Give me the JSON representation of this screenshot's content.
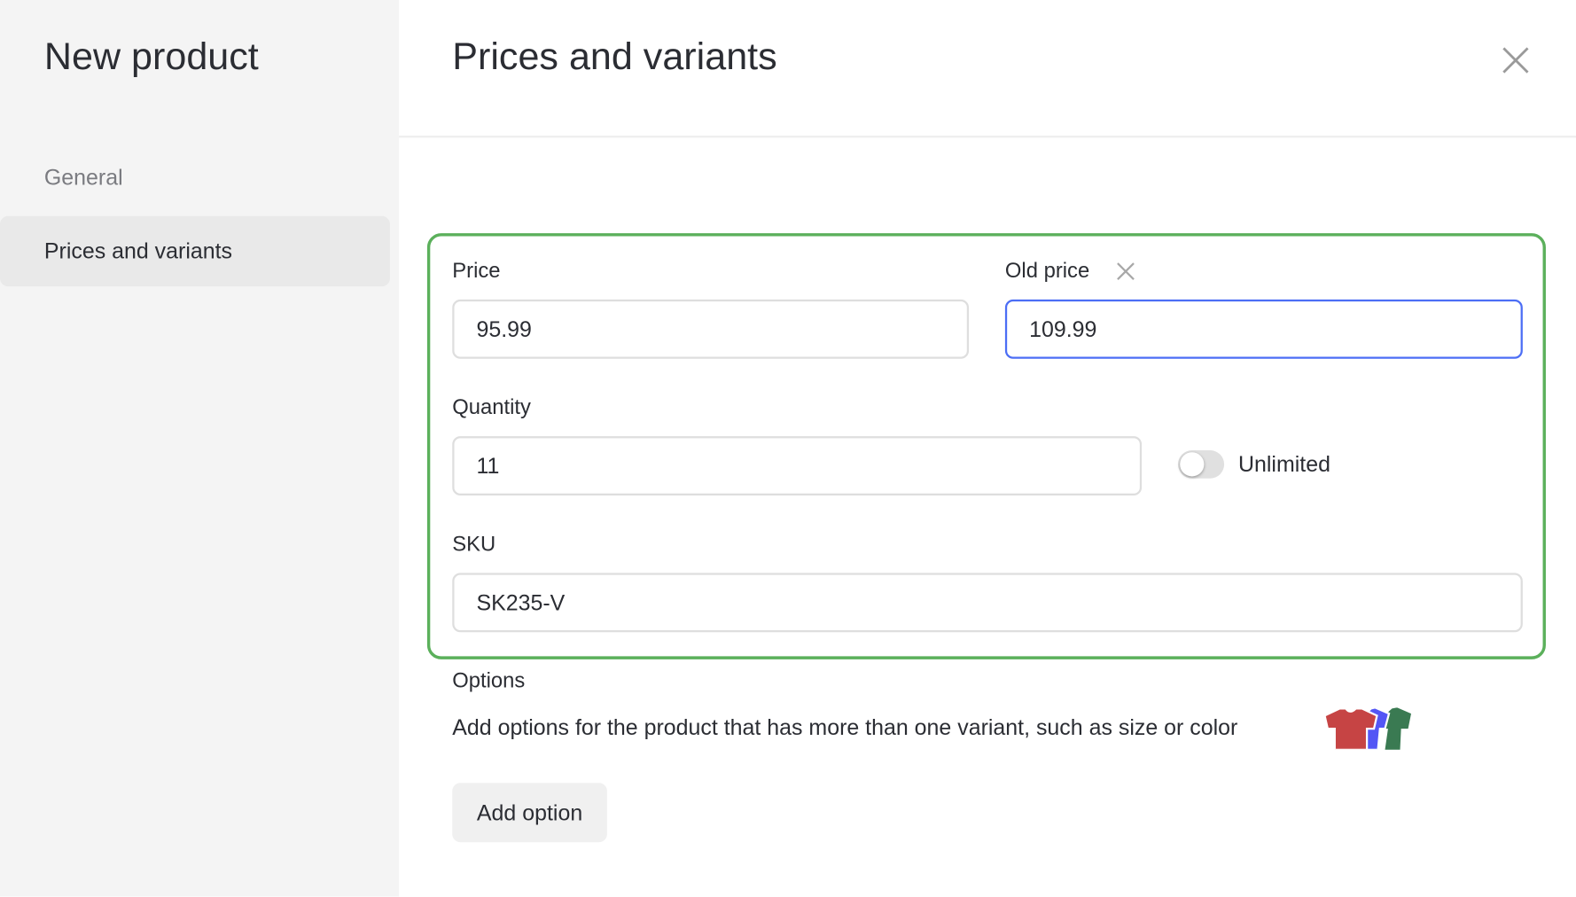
{
  "sidebar": {
    "title": "New product",
    "items": [
      {
        "label": "General",
        "active": false
      },
      {
        "label": "Prices and variants",
        "active": true
      }
    ]
  },
  "header": {
    "title": "Prices and variants",
    "close_icon": "close-icon"
  },
  "form": {
    "price": {
      "label": "Price",
      "value": "95.99"
    },
    "old_price": {
      "label": "Old price",
      "value": "109.99",
      "clear_icon": "close-icon"
    },
    "quantity": {
      "label": "Quantity",
      "value": "11"
    },
    "unlimited": {
      "label": "Unlimited",
      "on": false
    },
    "sku": {
      "label": "SKU",
      "value": "SK235-V"
    }
  },
  "options": {
    "title": "Options",
    "description": "Add options for the product that has more than one variant, such as size or color",
    "illustration_colors": [
      "#c64444",
      "#5356f5",
      "#3a7a52"
    ],
    "add_label": "Add option"
  },
  "colors": {
    "highlight": "#5bb05b",
    "focus": "#4c6ef5"
  }
}
